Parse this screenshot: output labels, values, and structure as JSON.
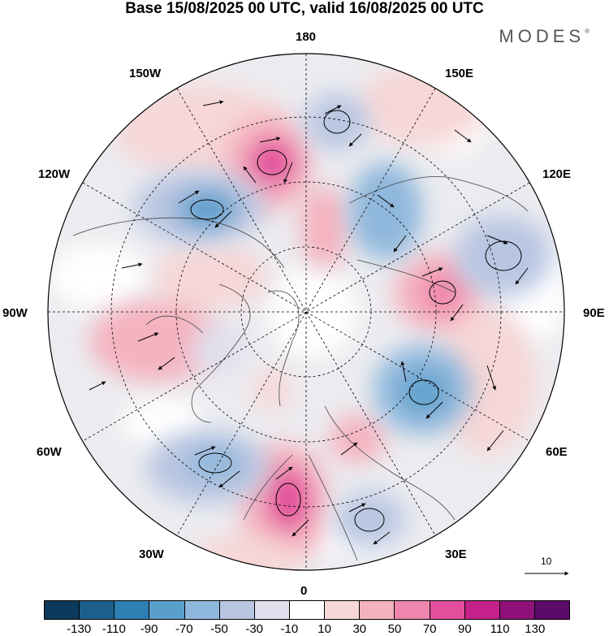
{
  "header": {
    "title": "Base 15/08/2025 00 UTC, valid 16/08/2025 00 UTC",
    "brand": "MODES",
    "brand_mark": "®"
  },
  "map": {
    "projection": "north-polar-stereographic",
    "longitude_labels": {
      "top": "180",
      "bottom": "0",
      "left": "90W",
      "right": "90E",
      "upper_left_1": "150W",
      "upper_left_2": "120W",
      "upper_right_1": "150E",
      "upper_right_2": "120E",
      "lower_left_1": "60W",
      "lower_left_2": "30W",
      "lower_right_1": "60E",
      "lower_right_2": "30E"
    },
    "reference_vector": "10"
  },
  "colorbar": {
    "ticks": [
      "-130",
      "-110",
      "-90",
      "-70",
      "-50",
      "-30",
      "-10",
      "10",
      "30",
      "50",
      "70",
      "90",
      "110",
      "130"
    ],
    "colors": [
      "#0d3a5c",
      "#1d5f8c",
      "#2f7fb4",
      "#5a9fcc",
      "#8fb7dc",
      "#b9c6e2",
      "#e0e0ee",
      "#ffffff",
      "#f7d7d7",
      "#f4b2bf",
      "#ef86ad",
      "#e34f9c",
      "#c4218a",
      "#8e1279",
      "#5b0b68"
    ]
  }
}
